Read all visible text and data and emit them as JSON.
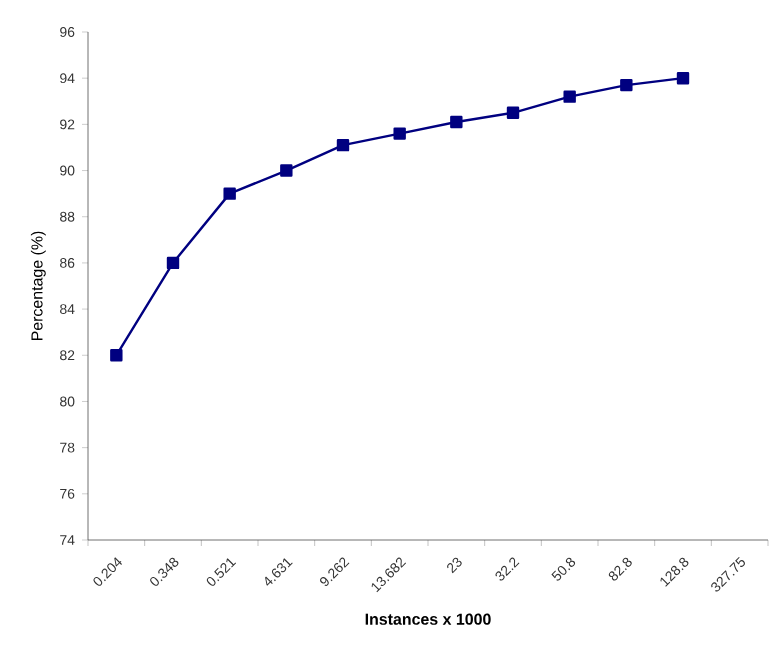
{
  "chart_data": {
    "type": "line",
    "xlabel": "Instances x 1000",
    "ylabel": "Percentage (%)",
    "categories": [
      "0.204",
      "0.348",
      "0.521",
      "4.631",
      "9.262",
      "13.682",
      "23",
      "32.2",
      "50.8",
      "82.8",
      "128.8",
      "327.75"
    ],
    "series": [
      {
        "color": "#000080",
        "values": [
          82,
          86,
          89,
          90,
          91.1,
          91.6,
          92.1,
          92.5,
          93.2,
          93.7,
          94.0,
          null
        ]
      }
    ],
    "ylim": [
      74,
      96
    ],
    "yticks": [
      74,
      76,
      78,
      80,
      82,
      84,
      86,
      88,
      90,
      92,
      94,
      96
    ],
    "marker": "square",
    "line_style": "solid"
  }
}
